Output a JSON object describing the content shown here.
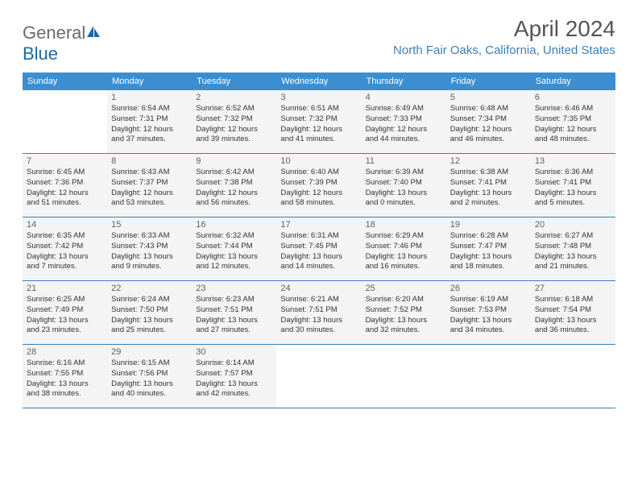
{
  "logo": {
    "part1": "General",
    "part2": "Blue"
  },
  "title": "April 2024",
  "location": "North Fair Oaks, California, United States",
  "weekdays": [
    "Sunday",
    "Monday",
    "Tuesday",
    "Wednesday",
    "Thursday",
    "Friday",
    "Saturday"
  ],
  "colors": {
    "header_bg": "#3b8fd1",
    "accent": "#3b7fb8",
    "cell_bg": "#f4f4f4",
    "text": "#333333",
    "logo_gray": "#6b6b6b",
    "title_gray": "#555555"
  },
  "weeks": [
    [
      {
        "empty": true
      },
      {
        "n": "1",
        "sr": "Sunrise: 6:54 AM",
        "ss": "Sunset: 7:31 PM",
        "d1": "Daylight: 12 hours",
        "d2": "and 37 minutes."
      },
      {
        "n": "2",
        "sr": "Sunrise: 6:52 AM",
        "ss": "Sunset: 7:32 PM",
        "d1": "Daylight: 12 hours",
        "d2": "and 39 minutes."
      },
      {
        "n": "3",
        "sr": "Sunrise: 6:51 AM",
        "ss": "Sunset: 7:32 PM",
        "d1": "Daylight: 12 hours",
        "d2": "and 41 minutes."
      },
      {
        "n": "4",
        "sr": "Sunrise: 6:49 AM",
        "ss": "Sunset: 7:33 PM",
        "d1": "Daylight: 12 hours",
        "d2": "and 44 minutes."
      },
      {
        "n": "5",
        "sr": "Sunrise: 6:48 AM",
        "ss": "Sunset: 7:34 PM",
        "d1": "Daylight: 12 hours",
        "d2": "and 46 minutes."
      },
      {
        "n": "6",
        "sr": "Sunrise: 6:46 AM",
        "ss": "Sunset: 7:35 PM",
        "d1": "Daylight: 12 hours",
        "d2": "and 48 minutes."
      }
    ],
    [
      {
        "n": "7",
        "sr": "Sunrise: 6:45 AM",
        "ss": "Sunset: 7:36 PM",
        "d1": "Daylight: 12 hours",
        "d2": "and 51 minutes."
      },
      {
        "n": "8",
        "sr": "Sunrise: 6:43 AM",
        "ss": "Sunset: 7:37 PM",
        "d1": "Daylight: 12 hours",
        "d2": "and 53 minutes."
      },
      {
        "n": "9",
        "sr": "Sunrise: 6:42 AM",
        "ss": "Sunset: 7:38 PM",
        "d1": "Daylight: 12 hours",
        "d2": "and 56 minutes."
      },
      {
        "n": "10",
        "sr": "Sunrise: 6:40 AM",
        "ss": "Sunset: 7:39 PM",
        "d1": "Daylight: 12 hours",
        "d2": "and 58 minutes."
      },
      {
        "n": "11",
        "sr": "Sunrise: 6:39 AM",
        "ss": "Sunset: 7:40 PM",
        "d1": "Daylight: 13 hours",
        "d2": "and 0 minutes."
      },
      {
        "n": "12",
        "sr": "Sunrise: 6:38 AM",
        "ss": "Sunset: 7:41 PM",
        "d1": "Daylight: 13 hours",
        "d2": "and 2 minutes."
      },
      {
        "n": "13",
        "sr": "Sunrise: 6:36 AM",
        "ss": "Sunset: 7:41 PM",
        "d1": "Daylight: 13 hours",
        "d2": "and 5 minutes."
      }
    ],
    [
      {
        "n": "14",
        "sr": "Sunrise: 6:35 AM",
        "ss": "Sunset: 7:42 PM",
        "d1": "Daylight: 13 hours",
        "d2": "and 7 minutes."
      },
      {
        "n": "15",
        "sr": "Sunrise: 6:33 AM",
        "ss": "Sunset: 7:43 PM",
        "d1": "Daylight: 13 hours",
        "d2": "and 9 minutes."
      },
      {
        "n": "16",
        "sr": "Sunrise: 6:32 AM",
        "ss": "Sunset: 7:44 PM",
        "d1": "Daylight: 13 hours",
        "d2": "and 12 minutes."
      },
      {
        "n": "17",
        "sr": "Sunrise: 6:31 AM",
        "ss": "Sunset: 7:45 PM",
        "d1": "Daylight: 13 hours",
        "d2": "and 14 minutes."
      },
      {
        "n": "18",
        "sr": "Sunrise: 6:29 AM",
        "ss": "Sunset: 7:46 PM",
        "d1": "Daylight: 13 hours",
        "d2": "and 16 minutes."
      },
      {
        "n": "19",
        "sr": "Sunrise: 6:28 AM",
        "ss": "Sunset: 7:47 PM",
        "d1": "Daylight: 13 hours",
        "d2": "and 18 minutes."
      },
      {
        "n": "20",
        "sr": "Sunrise: 6:27 AM",
        "ss": "Sunset: 7:48 PM",
        "d1": "Daylight: 13 hours",
        "d2": "and 21 minutes."
      }
    ],
    [
      {
        "n": "21",
        "sr": "Sunrise: 6:25 AM",
        "ss": "Sunset: 7:49 PM",
        "d1": "Daylight: 13 hours",
        "d2": "and 23 minutes."
      },
      {
        "n": "22",
        "sr": "Sunrise: 6:24 AM",
        "ss": "Sunset: 7:50 PM",
        "d1": "Daylight: 13 hours",
        "d2": "and 25 minutes."
      },
      {
        "n": "23",
        "sr": "Sunrise: 6:23 AM",
        "ss": "Sunset: 7:51 PM",
        "d1": "Daylight: 13 hours",
        "d2": "and 27 minutes."
      },
      {
        "n": "24",
        "sr": "Sunrise: 6:21 AM",
        "ss": "Sunset: 7:51 PM",
        "d1": "Daylight: 13 hours",
        "d2": "and 30 minutes."
      },
      {
        "n": "25",
        "sr": "Sunrise: 6:20 AM",
        "ss": "Sunset: 7:52 PM",
        "d1": "Daylight: 13 hours",
        "d2": "and 32 minutes."
      },
      {
        "n": "26",
        "sr": "Sunrise: 6:19 AM",
        "ss": "Sunset: 7:53 PM",
        "d1": "Daylight: 13 hours",
        "d2": "and 34 minutes."
      },
      {
        "n": "27",
        "sr": "Sunrise: 6:18 AM",
        "ss": "Sunset: 7:54 PM",
        "d1": "Daylight: 13 hours",
        "d2": "and 36 minutes."
      }
    ],
    [
      {
        "n": "28",
        "sr": "Sunrise: 6:16 AM",
        "ss": "Sunset: 7:55 PM",
        "d1": "Daylight: 13 hours",
        "d2": "and 38 minutes."
      },
      {
        "n": "29",
        "sr": "Sunrise: 6:15 AM",
        "ss": "Sunset: 7:56 PM",
        "d1": "Daylight: 13 hours",
        "d2": "and 40 minutes."
      },
      {
        "n": "30",
        "sr": "Sunrise: 6:14 AM",
        "ss": "Sunset: 7:57 PM",
        "d1": "Daylight: 13 hours",
        "d2": "and 42 minutes."
      },
      {
        "empty": true
      },
      {
        "empty": true
      },
      {
        "empty": true
      },
      {
        "empty": true
      }
    ]
  ]
}
